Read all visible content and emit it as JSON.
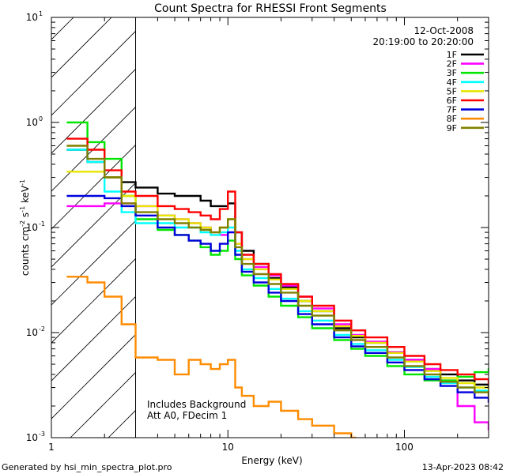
{
  "chart_data": {
    "type": "line",
    "title": "Count Spectra for RHESSI Front Segments",
    "xlabel": "Energy (keV)",
    "ylabel": "counts cm-2 s-1 keV-1",
    "xscale": "log",
    "yscale": "log",
    "xlim": [
      1,
      300
    ],
    "ylim": [
      0.001,
      10
    ],
    "x_ticks": [
      {
        "v": 1,
        "label": "1"
      },
      {
        "v": 10,
        "label": "10"
      },
      {
        "v": 100,
        "label": "100"
      }
    ],
    "y_ticks": [
      {
        "v": 10,
        "base": "10",
        "exp": "1"
      },
      {
        "v": 1,
        "base": "10",
        "exp": "0"
      },
      {
        "v": 0.1,
        "base": "10",
        "exp": "-1"
      },
      {
        "v": 0.01,
        "base": "10",
        "exp": "-2"
      },
      {
        "v": 0.001,
        "base": "10",
        "exp": "-3"
      }
    ],
    "shaded_region": {
      "from_kev": 1,
      "to_kev": 3,
      "style": "hatched"
    },
    "date": "12-Oct-2008",
    "time_range": "20:19:00 to 20:20:00",
    "annotation_lines": [
      "Includes Background",
      "Att A0, FDecim 1"
    ],
    "series": [
      {
        "name": "1F",
        "color": "#000000",
        "points": [
          [
            1.3,
            0.55
          ],
          [
            1.6,
            0.42
          ],
          [
            2,
            0.3
          ],
          [
            2.5,
            0.27
          ],
          [
            3,
            0.24
          ],
          [
            4,
            0.21
          ],
          [
            5,
            0.2
          ],
          [
            6,
            0.2
          ],
          [
            7,
            0.18
          ],
          [
            8,
            0.16
          ],
          [
            9,
            0.16
          ],
          [
            10,
            0.17
          ],
          [
            11,
            0.09
          ],
          [
            12,
            0.06
          ],
          [
            14,
            0.045
          ],
          [
            17,
            0.033
          ],
          [
            20,
            0.027
          ],
          [
            25,
            0.02
          ],
          [
            30,
            0.016
          ],
          [
            40,
            0.011
          ],
          [
            50,
            0.009
          ],
          [
            60,
            0.008
          ],
          [
            80,
            0.0065
          ],
          [
            100,
            0.0055
          ],
          [
            130,
            0.0045
          ],
          [
            160,
            0.004
          ],
          [
            200,
            0.0035
          ],
          [
            250,
            0.0032
          ],
          [
            300,
            0.003
          ]
        ]
      },
      {
        "name": "2F",
        "color": "#ff00ff",
        "points": [
          [
            1.3,
            0.16
          ],
          [
            1.6,
            0.16
          ],
          [
            2,
            0.17
          ],
          [
            2.5,
            0.17
          ],
          [
            3,
            0.16
          ],
          [
            4,
            0.13
          ],
          [
            5,
            0.12
          ],
          [
            6,
            0.11
          ],
          [
            7,
            0.1
          ],
          [
            8,
            0.09
          ],
          [
            9,
            0.085
          ],
          [
            10,
            0.09
          ],
          [
            11,
            0.07
          ],
          [
            12,
            0.05
          ],
          [
            14,
            0.042
          ],
          [
            17,
            0.035
          ],
          [
            20,
            0.028
          ],
          [
            25,
            0.022
          ],
          [
            30,
            0.017
          ],
          [
            40,
            0.012
          ],
          [
            50,
            0.0095
          ],
          [
            60,
            0.0082
          ],
          [
            80,
            0.0065
          ],
          [
            100,
            0.0055
          ],
          [
            130,
            0.0045
          ],
          [
            160,
            0.0035
          ],
          [
            200,
            0.002
          ],
          [
            250,
            0.0014
          ],
          [
            300,
            0.0012
          ]
        ]
      },
      {
        "name": "3F",
        "color": "#00e600",
        "points": [
          [
            1.3,
            1.0
          ],
          [
            1.6,
            0.65
          ],
          [
            2,
            0.45
          ],
          [
            2.5,
            0.2
          ],
          [
            3,
            0.12
          ],
          [
            4,
            0.095
          ],
          [
            5,
            0.085
          ],
          [
            6,
            0.075
          ],
          [
            7,
            0.065
          ],
          [
            8,
            0.055
          ],
          [
            9,
            0.06
          ],
          [
            10,
            0.075
          ],
          [
            11,
            0.05
          ],
          [
            12,
            0.035
          ],
          [
            14,
            0.028
          ],
          [
            17,
            0.022
          ],
          [
            20,
            0.018
          ],
          [
            25,
            0.014
          ],
          [
            30,
            0.011
          ],
          [
            40,
            0.0085
          ],
          [
            50,
            0.007
          ],
          [
            60,
            0.006
          ],
          [
            80,
            0.0048
          ],
          [
            100,
            0.004
          ],
          [
            130,
            0.0035
          ],
          [
            160,
            0.0035
          ],
          [
            200,
            0.0038
          ],
          [
            250,
            0.0042
          ],
          [
            300,
            0.0045
          ]
        ]
      },
      {
        "name": "4F",
        "color": "#00ffff",
        "points": [
          [
            1.3,
            0.55
          ],
          [
            1.6,
            0.42
          ],
          [
            2,
            0.22
          ],
          [
            2.5,
            0.14
          ],
          [
            3,
            0.11
          ],
          [
            4,
            0.11
          ],
          [
            5,
            0.1
          ],
          [
            6,
            0.1
          ],
          [
            7,
            0.09
          ],
          [
            8,
            0.085
          ],
          [
            9,
            0.09
          ],
          [
            10,
            0.1
          ],
          [
            11,
            0.06
          ],
          [
            12,
            0.04
          ],
          [
            14,
            0.033
          ],
          [
            17,
            0.026
          ],
          [
            20,
            0.021
          ],
          [
            25,
            0.016
          ],
          [
            30,
            0.013
          ],
          [
            40,
            0.0095
          ],
          [
            50,
            0.0078
          ],
          [
            60,
            0.0068
          ],
          [
            80,
            0.0055
          ],
          [
            100,
            0.0047
          ],
          [
            130,
            0.0038
          ],
          [
            160,
            0.0033
          ],
          [
            200,
            0.003
          ],
          [
            250,
            0.0028
          ],
          [
            300,
            0.0027
          ]
        ]
      },
      {
        "name": "5F",
        "color": "#e6e600",
        "points": [
          [
            1.3,
            0.34
          ],
          [
            1.6,
            0.34
          ],
          [
            2,
            0.3
          ],
          [
            2.5,
            0.2
          ],
          [
            3,
            0.16
          ],
          [
            4,
            0.13
          ],
          [
            5,
            0.12
          ],
          [
            6,
            0.11
          ],
          [
            7,
            0.1
          ],
          [
            8,
            0.09
          ],
          [
            9,
            0.1
          ],
          [
            10,
            0.12
          ],
          [
            11,
            0.07
          ],
          [
            12,
            0.05
          ],
          [
            14,
            0.04
          ],
          [
            17,
            0.032
          ],
          [
            20,
            0.026
          ],
          [
            25,
            0.02
          ],
          [
            30,
            0.016
          ],
          [
            40,
            0.0115
          ],
          [
            50,
            0.0093
          ],
          [
            60,
            0.008
          ],
          [
            80,
            0.0064
          ],
          [
            100,
            0.0053
          ],
          [
            130,
            0.0043
          ],
          [
            160,
            0.0037
          ],
          [
            200,
            0.0033
          ],
          [
            250,
            0.003
          ],
          [
            300,
            0.0028
          ]
        ]
      },
      {
        "name": "6F",
        "color": "#ff0000",
        "points": [
          [
            1.3,
            0.7
          ],
          [
            1.6,
            0.55
          ],
          [
            2,
            0.35
          ],
          [
            2.5,
            0.22
          ],
          [
            3,
            0.2
          ],
          [
            4,
            0.16
          ],
          [
            5,
            0.15
          ],
          [
            6,
            0.14
          ],
          [
            7,
            0.13
          ],
          [
            8,
            0.12
          ],
          [
            9,
            0.15
          ],
          [
            10,
            0.22
          ],
          [
            11,
            0.09
          ],
          [
            12,
            0.055
          ],
          [
            14,
            0.045
          ],
          [
            17,
            0.036
          ],
          [
            20,
            0.029
          ],
          [
            25,
            0.022
          ],
          [
            30,
            0.018
          ],
          [
            40,
            0.013
          ],
          [
            50,
            0.0105
          ],
          [
            60,
            0.009
          ],
          [
            80,
            0.0073
          ],
          [
            100,
            0.006
          ],
          [
            130,
            0.005
          ],
          [
            160,
            0.0044
          ],
          [
            200,
            0.004
          ],
          [
            250,
            0.0036
          ],
          [
            300,
            0.0033
          ]
        ]
      },
      {
        "name": "7F",
        "color": "#0000dd",
        "points": [
          [
            1.3,
            0.2
          ],
          [
            1.6,
            0.2
          ],
          [
            2,
            0.19
          ],
          [
            2.5,
            0.16
          ],
          [
            3,
            0.13
          ],
          [
            4,
            0.1
          ],
          [
            5,
            0.085
          ],
          [
            6,
            0.075
          ],
          [
            7,
            0.07
          ],
          [
            8,
            0.06
          ],
          [
            9,
            0.07
          ],
          [
            10,
            0.09
          ],
          [
            11,
            0.055
          ],
          [
            12,
            0.038
          ],
          [
            14,
            0.03
          ],
          [
            17,
            0.024
          ],
          [
            20,
            0.02
          ],
          [
            25,
            0.015
          ],
          [
            30,
            0.012
          ],
          [
            40,
            0.009
          ],
          [
            50,
            0.0074
          ],
          [
            60,
            0.0064
          ],
          [
            80,
            0.0052
          ],
          [
            100,
            0.0044
          ],
          [
            130,
            0.0036
          ],
          [
            160,
            0.0031
          ],
          [
            200,
            0.0027
          ],
          [
            250,
            0.0024
          ],
          [
            300,
            0.0022
          ]
        ]
      },
      {
        "name": "8F",
        "color": "#ff8c00",
        "points": [
          [
            1.3,
            0.034
          ],
          [
            1.6,
            0.03
          ],
          [
            2,
            0.022
          ],
          [
            2.5,
            0.012
          ],
          [
            3,
            0.0058
          ],
          [
            4,
            0.0055
          ],
          [
            5,
            0.004
          ],
          [
            6,
            0.0055
          ],
          [
            7,
            0.005
          ],
          [
            8,
            0.0045
          ],
          [
            9,
            0.005
          ],
          [
            10,
            0.0055
          ],
          [
            11,
            0.003
          ],
          [
            12,
            0.0025
          ],
          [
            14,
            0.002
          ],
          [
            17,
            0.0022
          ],
          [
            20,
            0.0018
          ],
          [
            25,
            0.0015
          ],
          [
            30,
            0.0013
          ],
          [
            40,
            0.0011
          ],
          [
            50,
            0.001
          ]
        ]
      },
      {
        "name": "9F",
        "color": "#808000",
        "points": [
          [
            1.3,
            0.6
          ],
          [
            1.6,
            0.45
          ],
          [
            2,
            0.3
          ],
          [
            2.5,
            0.17
          ],
          [
            3,
            0.14
          ],
          [
            4,
            0.12
          ],
          [
            5,
            0.11
          ],
          [
            6,
            0.1
          ],
          [
            7,
            0.095
          ],
          [
            8,
            0.09
          ],
          [
            9,
            0.1
          ],
          [
            10,
            0.12
          ],
          [
            11,
            0.065
          ],
          [
            12,
            0.045
          ],
          [
            14,
            0.036
          ],
          [
            17,
            0.029
          ],
          [
            20,
            0.024
          ],
          [
            25,
            0.018
          ],
          [
            30,
            0.0145
          ],
          [
            40,
            0.0105
          ],
          [
            50,
            0.0085
          ],
          [
            60,
            0.0073
          ],
          [
            80,
            0.0058
          ],
          [
            100,
            0.0048
          ],
          [
            130,
            0.004
          ],
          [
            160,
            0.0034
          ],
          [
            200,
            0.003
          ],
          [
            250,
            0.0027
          ],
          [
            300,
            0.0025
          ]
        ]
      }
    ]
  },
  "footer": {
    "generated_by": "Generated by hsi_min_spectra_plot.pro",
    "timestamp": "13-Apr-2023 08:42"
  }
}
